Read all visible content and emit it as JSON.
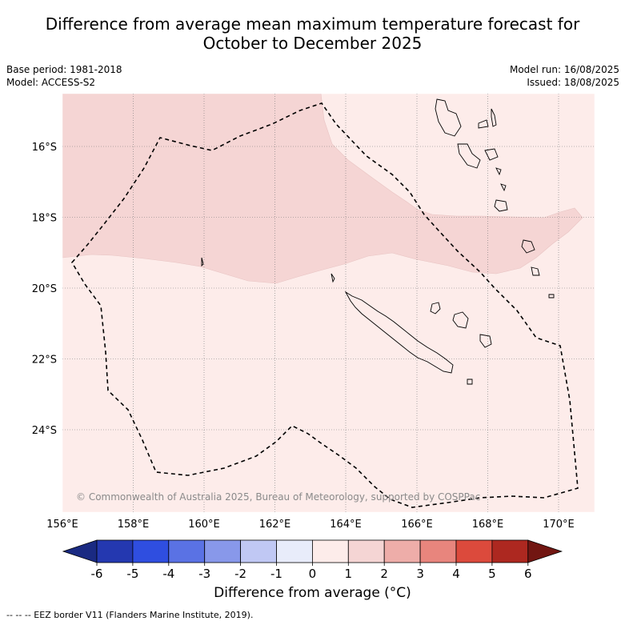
{
  "title_line1": "Difference from average mean maximum temperature forecast for",
  "title_line2": "October to December 2025",
  "base_period": "Base period: 1981-2018",
  "model": "Model: ACCESS-S2",
  "model_run": "Model run: 16/08/2025",
  "issued": "Issued: 18/08/2025",
  "copyright": "© Commonwealth of Australia 2025, Bureau of Meteorology, supported by COSPPac",
  "latitude_labels": [
    "16°S",
    "18°S",
    "20°S",
    "22°S",
    "24°S"
  ],
  "longitude_labels": [
    "156°E",
    "158°E",
    "160°E",
    "162°E",
    "164°E",
    "166°E",
    "168°E",
    "170°E"
  ],
  "colorbar": {
    "ticks": [
      "-6",
      "-5",
      "-4",
      "-3",
      "-2",
      "-1",
      "0",
      "1",
      "2",
      "3",
      "4",
      "5",
      "6"
    ],
    "colors": [
      "#1a2a82",
      "#2438b0",
      "#2f4ee0",
      "#5a72e4",
      "#8898ea",
      "#c0c8f4",
      "#e8ecfa",
      "#fdecea",
      "#f5d5d4",
      "#eeada9",
      "#e8857d",
      "#dc4a3c",
      "#ad2820",
      "#721612"
    ],
    "title": "Difference from average (°C)"
  },
  "legend_footer": "-- -- -- EEZ border V11 (Flanders Marine Institute, 2019).",
  "colors": {
    "anomaly_0_1": "#fdecea",
    "anomaly_1_2": "#f5d5d4"
  }
}
